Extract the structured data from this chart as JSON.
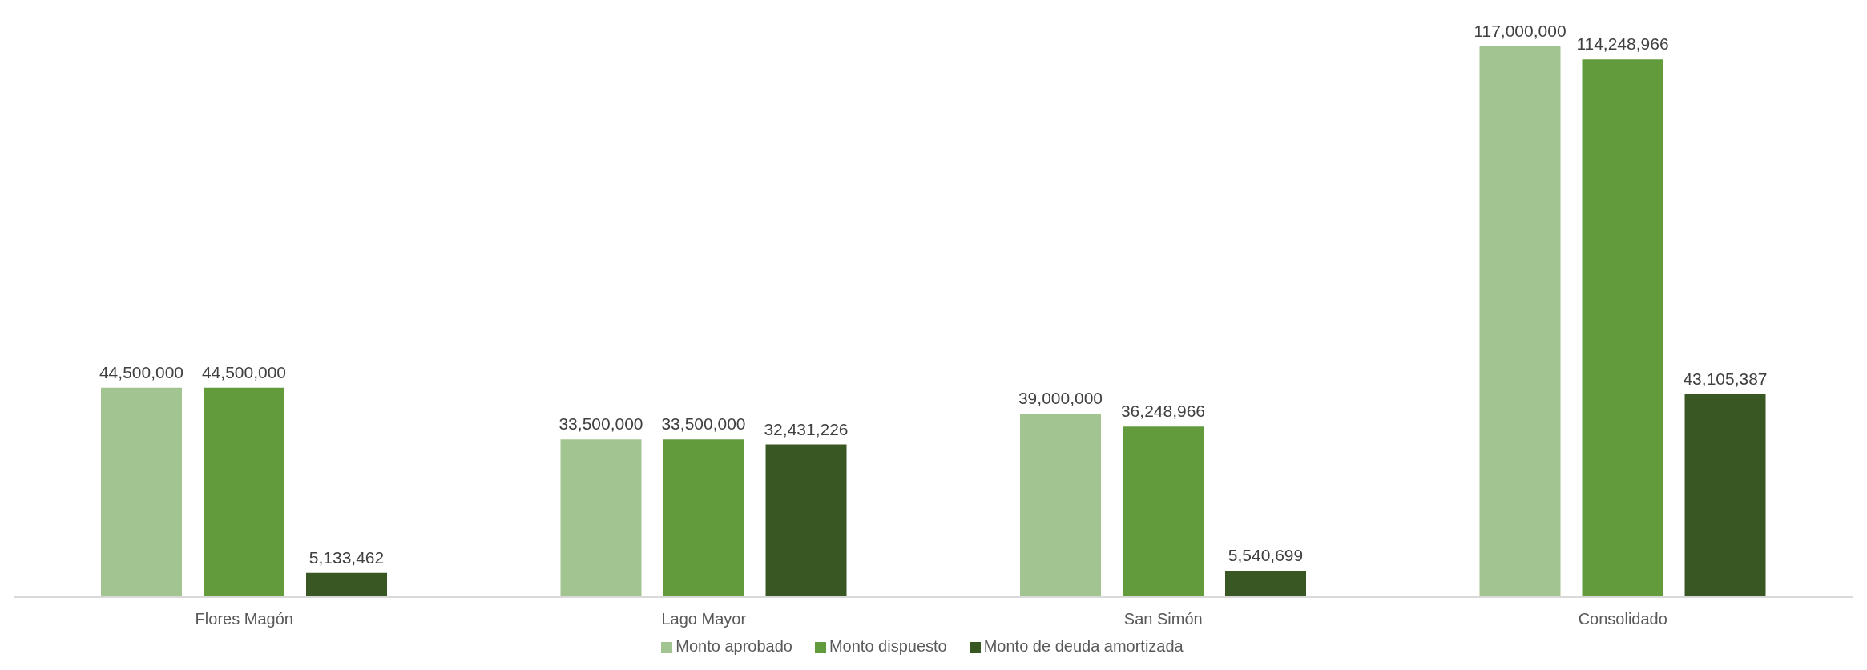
{
  "chart_data": {
    "type": "bar",
    "categories": [
      "Flores Magón",
      "Lago Mayor",
      "San Simón",
      "Consolidado"
    ],
    "series": [
      {
        "name": "Monto aprobado",
        "color": "#a2c490",
        "values": [
          44500000,
          33500000,
          39000000,
          117000000
        ],
        "value_labels": [
          "44,500,000",
          "33,500,000",
          "39,000,000",
          "117,000,000"
        ]
      },
      {
        "name": "Monto dispuesto",
        "color": "#629b3c",
        "values": [
          44500000,
          33500000,
          36248966,
          114248966
        ],
        "value_labels": [
          "44,500,000",
          "33,500,000",
          "36,248,966",
          "114,248,966"
        ]
      },
      {
        "name": "Monto de deuda amortizada",
        "color": "#385723",
        "values": [
          5133462,
          32431226,
          5540699,
          43105387
        ],
        "value_labels": [
          "5,133,462",
          "32,431,226",
          "5,540,699",
          "43,105,387"
        ]
      }
    ],
    "legend": "bottom",
    "grid": false
  }
}
